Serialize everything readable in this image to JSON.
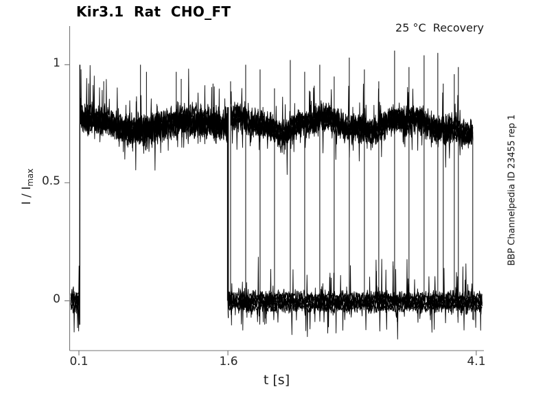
{
  "title": "Kir3.1  Rat  CHO_FT",
  "annotation_top_right": "25 °C  Recovery",
  "side_label": "BBP Channelpedia ID 23455 rep 1",
  "colors": {
    "trace": "#000000",
    "axis": "#737373",
    "text": "#262626",
    "background": "#ffffff"
  },
  "chart_data": {
    "type": "line",
    "title": "Kir3.1  Rat  CHO_FT",
    "annotation": "25 °C  Recovery",
    "watermark": "BBP Channelpedia ID 23455 rep 1",
    "xlabel": "t [s]",
    "ylabel_main": "I / I",
    "ylabel_sub": "max",
    "xlim": [
      0.007,
      4.177
    ],
    "ylim": [
      -0.211,
      1.158
    ],
    "x_ticks": [
      0.1,
      1.6,
      4.1
    ],
    "x_tick_labels": [
      "0.1",
      "1.6",
      "4.1"
    ],
    "y_ticks": [
      1,
      0.5,
      0
    ],
    "y_tick_labels": [
      "1",
      "0.5",
      "0"
    ],
    "grid": false,
    "legend": false,
    "trace": {
      "pre_baseline": {
        "t0": 0.018,
        "t1": 0.106,
        "level": 0.0,
        "noise": 0.03,
        "sweeps": 6
      },
      "onset": {
        "t": 0.11,
        "undershoot": -0.1,
        "peak": 1.0
      },
      "pulse1": {
        "t0": 0.11,
        "t1": 1.6,
        "mean": 0.75,
        "noise": 0.05,
        "sweeps": 8,
        "spikes": [
          {
            "t": 0.35,
            "peak": 0.93
          },
          {
            "t": 0.72,
            "peak": 1.0
          },
          {
            "t": 0.78,
            "peak": 0.97
          },
          {
            "t": 1.08,
            "peak": 0.97
          },
          {
            "t": 1.13,
            "peak": 0.94
          },
          {
            "t": 1.45,
            "peak": 0.92
          }
        ]
      },
      "gap_drop": {
        "t": 1.6,
        "from": 0.82,
        "undershoot": -0.073
      },
      "baseline2": {
        "t0": 1.602,
        "t1": 4.16,
        "level": -0.005,
        "noise": 0.028,
        "sweeps": 6,
        "down_spikes": [
          {
            "t": 1.975,
            "v": -0.075
          },
          {
            "t": 3.915,
            "v": -0.068
          },
          {
            "t": 4.075,
            "v": -0.082
          }
        ]
      },
      "pulse2": {
        "t0": 1.63,
        "t1": 4.068,
        "mean": 0.745,
        "noise": 0.045,
        "sweeps": 7
      },
      "recovery_pulses": [
        {
          "t": 1.627,
          "peak": 0.93
        },
        {
          "t": 1.779,
          "peak": 1.0
        },
        {
          "t": 1.924,
          "peak": 0.98
        },
        {
          "t": 2.069,
          "peak": 0.9
        },
        {
          "t": 2.228,
          "peak": 1.02
        },
        {
          "t": 2.373,
          "peak": 0.97
        },
        {
          "t": 2.525,
          "peak": 1.0
        },
        {
          "t": 2.67,
          "peak": 0.95
        },
        {
          "t": 2.822,
          "peak": 1.03
        },
        {
          "t": 2.974,
          "peak": 0.98
        },
        {
          "t": 3.119,
          "peak": 0.93
        },
        {
          "t": 3.278,
          "peak": 1.06
        },
        {
          "t": 3.423,
          "peak": 0.99
        },
        {
          "t": 3.575,
          "peak": 1.04
        },
        {
          "t": 3.713,
          "peak": 1.05
        },
        {
          "t": 3.768,
          "peak": 0.92
        },
        {
          "t": 3.879,
          "peak": 0.96
        },
        {
          "t": 3.92,
          "peak": 0.99
        }
      ],
      "end_drop": {
        "t": 4.065,
        "from": 0.7,
        "undershoot": -0.08
      }
    }
  }
}
